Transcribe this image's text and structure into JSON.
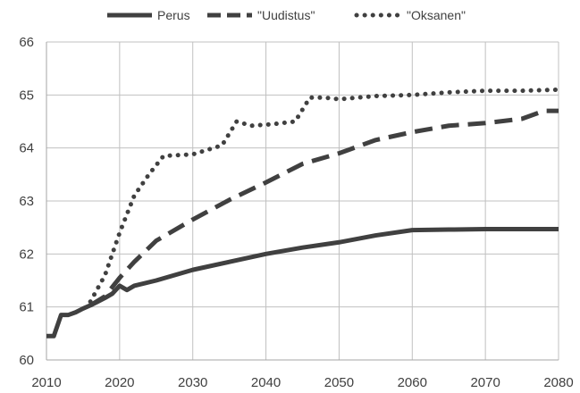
{
  "chart_data": {
    "type": "line",
    "title": "",
    "xlabel": "",
    "ylabel": "",
    "xlim": [
      2010,
      2080
    ],
    "ylim": [
      60,
      66
    ],
    "x_ticks": [
      2010,
      2020,
      2030,
      2040,
      2050,
      2060,
      2070,
      2080
    ],
    "y_ticks": [
      60,
      61,
      62,
      63,
      64,
      65,
      66
    ],
    "grid": {
      "vertical": true,
      "horizontal": true
    },
    "legend_position": "top",
    "colors": {
      "series": "#404040",
      "grid": "#c0c0c0",
      "axis": "#a6a6a6",
      "text": "#404040",
      "background": "#ffffff"
    },
    "series": [
      {
        "name": "Perus",
        "style": "solid",
        "points": [
          [
            2010,
            60.45
          ],
          [
            2011,
            60.45
          ],
          [
            2012,
            60.85
          ],
          [
            2013,
            60.85
          ],
          [
            2014,
            60.9
          ],
          [
            2015,
            60.97
          ],
          [
            2016,
            61.03
          ],
          [
            2017,
            61.1
          ],
          [
            2018,
            61.17
          ],
          [
            2019,
            61.25
          ],
          [
            2020,
            61.4
          ],
          [
            2021,
            61.32
          ],
          [
            2022,
            61.4
          ],
          [
            2025,
            61.5
          ],
          [
            2030,
            61.7
          ],
          [
            2035,
            61.85
          ],
          [
            2040,
            62.0
          ],
          [
            2045,
            62.12
          ],
          [
            2050,
            62.22
          ],
          [
            2055,
            62.35
          ],
          [
            2060,
            62.45
          ],
          [
            2065,
            62.46
          ],
          [
            2070,
            62.47
          ],
          [
            2075,
            62.47
          ],
          [
            2080,
            62.47
          ]
        ]
      },
      {
        "name": "\"Uudistus\"",
        "style": "dashed",
        "points": [
          [
            2016,
            61.03
          ],
          [
            2018,
            61.2
          ],
          [
            2020,
            61.55
          ],
          [
            2022,
            61.85
          ],
          [
            2025,
            62.25
          ],
          [
            2030,
            62.65
          ],
          [
            2035,
            63.02
          ],
          [
            2040,
            63.35
          ],
          [
            2045,
            63.7
          ],
          [
            2050,
            63.9
          ],
          [
            2055,
            64.15
          ],
          [
            2060,
            64.3
          ],
          [
            2065,
            64.42
          ],
          [
            2070,
            64.47
          ],
          [
            2075,
            64.55
          ],
          [
            2078,
            64.7
          ],
          [
            2080,
            64.7
          ]
        ]
      },
      {
        "name": "\"Oksanen\"",
        "style": "dotted",
        "points": [
          [
            2016,
            61.1
          ],
          [
            2018,
            61.6
          ],
          [
            2020,
            62.4
          ],
          [
            2022,
            63.1
          ],
          [
            2024,
            63.5
          ],
          [
            2026,
            63.85
          ],
          [
            2030,
            63.88
          ],
          [
            2034,
            64.05
          ],
          [
            2036,
            64.5
          ],
          [
            2038,
            64.42
          ],
          [
            2041,
            64.45
          ],
          [
            2044,
            64.5
          ],
          [
            2046,
            64.95
          ],
          [
            2048,
            64.95
          ],
          [
            2050,
            64.92
          ],
          [
            2055,
            64.98
          ],
          [
            2060,
            65.0
          ],
          [
            2065,
            65.05
          ],
          [
            2070,
            65.08
          ],
          [
            2075,
            65.08
          ],
          [
            2080,
            65.1
          ]
        ]
      }
    ]
  }
}
